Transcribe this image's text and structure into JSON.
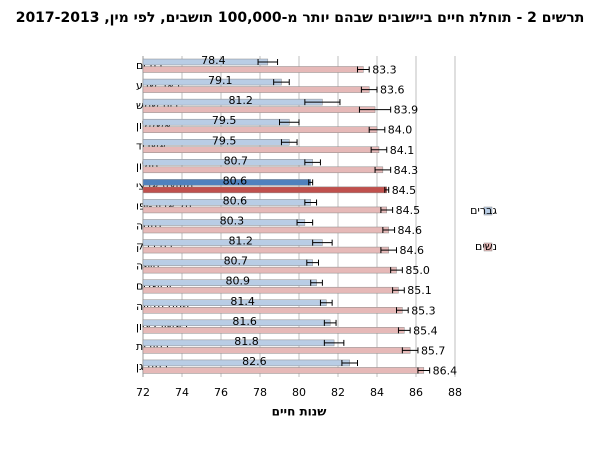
{
  "chart_data": {
    "type": "hbar_error",
    "title": "תרשים 2 - תוחלת חיים ביישובים שבהם יותר מ-100,000 תושבים, לפי מין, 2017-2013",
    "x_label": "שנות חיים",
    "categories": [
      "בת ים",
      "באר שבע",
      "בית שמש",
      "אשקלון",
      "אשדוד",
      "חולון",
      "ממוצע ארצי",
      "תל אביב-יפו",
      "נתניה",
      "בני ברק",
      "חיפה",
      "ירושלים",
      "פתח תקווה",
      "ראשון לציון",
      "רחובות",
      "רמת גן"
    ],
    "series": [
      {
        "name": "גברים",
        "color": "#b9cde5",
        "colors": [
          "#b9cde5",
          "#b9cde5",
          "#b9cde5",
          "#b9cde5",
          "#b9cde5",
          "#b9cde5",
          "#4f81bd",
          "#b9cde5",
          "#b9cde5",
          "#b9cde5",
          "#b9cde5",
          "#b9cde5",
          "#b9cde5",
          "#b9cde5",
          "#b9cde5",
          "#b9cde5"
        ],
        "values": [
          78.4,
          79.1,
          81.2,
          79.5,
          79.5,
          80.7,
          80.6,
          80.6,
          80.3,
          81.2,
          80.7,
          80.9,
          81.4,
          81.6,
          81.8,
          82.6
        ],
        "value_labels": [
          "78.4",
          "79.1",
          "81.2",
          "79.5",
          "79.5",
          "80.7",
          "80.6",
          "80.6",
          "80.3",
          "81.2",
          "80.7",
          "80.9",
          "81.4",
          "81.6",
          "81.8",
          "82.6"
        ],
        "errors": [
          0.5,
          0.4,
          0.9,
          0.5,
          0.4,
          0.4,
          0.1,
          0.3,
          0.4,
          0.5,
          0.3,
          0.3,
          0.3,
          0.3,
          0.5,
          0.4
        ]
      },
      {
        "name": "נשים",
        "color": "#e6b9b8",
        "colors": [
          "#e6b9b8",
          "#e6b9b8",
          "#e6b9b8",
          "#e6b9b8",
          "#e6b9b8",
          "#e6b9b8",
          "#c0504d",
          "#e6b9b8",
          "#e6b9b8",
          "#e6b9b8",
          "#e6b9b8",
          "#e6b9b8",
          "#e6b9b8",
          "#e6b9b8",
          "#e6b9b8",
          "#e6b9b8"
        ],
        "values": [
          83.3,
          83.6,
          83.9,
          84.0,
          84.1,
          84.3,
          84.5,
          84.5,
          84.6,
          84.6,
          85.0,
          85.1,
          85.3,
          85.4,
          85.7,
          86.4
        ],
        "value_labels": [
          "83.3",
          "83.6",
          "83.9",
          "84.0",
          "84.1",
          "84.3",
          "84.5",
          "84.5",
          "84.6",
          "84.6",
          "85.0",
          "85.1",
          "85.3",
          "85.4",
          "85.7",
          "86.4"
        ],
        "errors": [
          0.3,
          0.4,
          0.8,
          0.4,
          0.4,
          0.4,
          0.1,
          0.3,
          0.3,
          0.4,
          0.3,
          0.3,
          0.3,
          0.3,
          0.4,
          0.3
        ]
      }
    ],
    "xlim": [
      72,
      88
    ],
    "xticks": [
      72,
      74,
      76,
      78,
      80,
      82,
      84,
      86,
      88
    ],
    "grid": true,
    "legend": "right"
  }
}
